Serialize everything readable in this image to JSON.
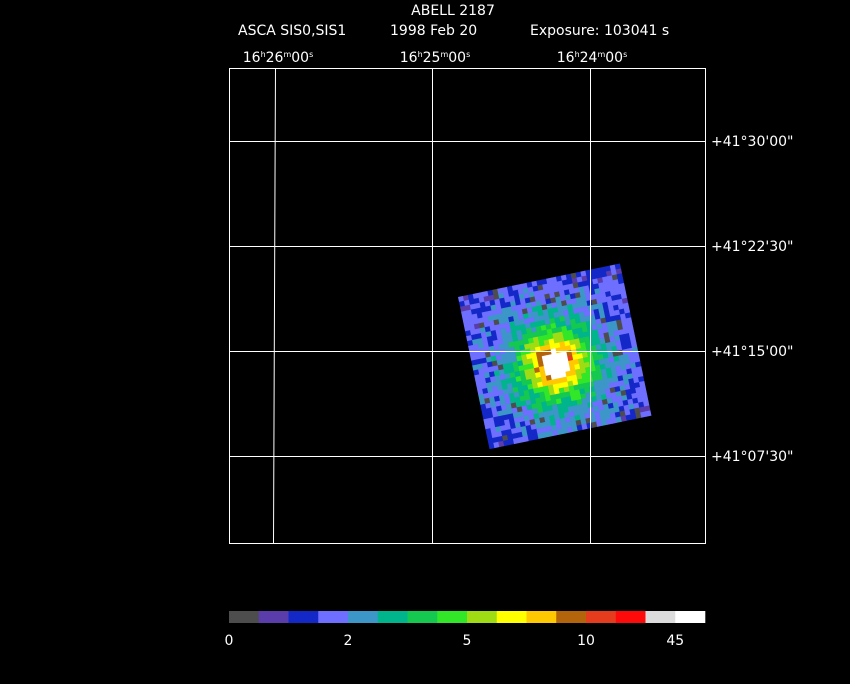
{
  "header": {
    "title": "ABELL 2187",
    "instrument": "ASCA SIS0,SIS1",
    "date": "1998 Feb 20",
    "exposure": "Exposure: 103041 s"
  },
  "ra_labels": [
    [
      "16",
      "h",
      "26",
      "m",
      "00",
      "s"
    ],
    [
      "16",
      "h",
      "25",
      "m",
      "00",
      "s"
    ],
    [
      "16",
      "h",
      "24",
      "m",
      "00",
      "s"
    ]
  ],
  "dec_labels": [
    "+41°30'00\"",
    "+41°22'30\"",
    "+41°15'00\"",
    "+41°07'30\""
  ],
  "colorbar": {
    "colors": [
      "#4d4d4d",
      "#5a3caa",
      "#1428c8",
      "#6e6eff",
      "#3c96c8",
      "#00b48c",
      "#14c850",
      "#32e628",
      "#a0dc14",
      "#ffff00",
      "#ffc800",
      "#b4640a",
      "#e63c1e",
      "#ff0a0a",
      "#dcdcdc",
      "#ffffff"
    ],
    "labels": [
      "0",
      "2",
      "5",
      "10",
      "45"
    ]
  }
}
